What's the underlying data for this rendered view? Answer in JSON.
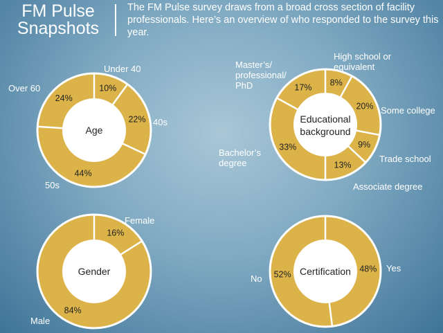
{
  "header": {
    "title_line1": "FM Pulse",
    "title_line2": "Snapshots",
    "intro": "The FM Pulse survey draws from a broad cross section of facility professionals. Here’s an overview of who responded to the survey this year."
  },
  "colors": {
    "slice": "#dbb349",
    "divider": "#ffffff",
    "center": "#ffffff"
  },
  "chart_data": [
    {
      "type": "pie",
      "center_label": [
        "Age"
      ],
      "slices": [
        {
          "label": "Under 40",
          "value": 10,
          "display": "10%"
        },
        {
          "label": "40s",
          "value": 22,
          "display": "22%"
        },
        {
          "label": "50s",
          "value": 44,
          "display": "44%"
        },
        {
          "label": "Over 60",
          "value": 24,
          "display": "24%"
        }
      ]
    },
    {
      "type": "pie",
      "center_label": [
        "Educational",
        "background"
      ],
      "slices": [
        {
          "label": "High school or equivalent",
          "value": 8,
          "display": "8%"
        },
        {
          "label": "Some college",
          "value": 20,
          "display": "20%"
        },
        {
          "label": "Trade school",
          "value": 9,
          "display": "9%"
        },
        {
          "label": "Associate degree",
          "value": 13,
          "display": "13%"
        },
        {
          "label": "Bachelor’s degree",
          "value": 33,
          "display": "33%"
        },
        {
          "label": "Master’s/ professional/ PhD",
          "value": 17,
          "display": "17%"
        }
      ]
    },
    {
      "type": "pie",
      "center_label": [
        "Gender"
      ],
      "slices": [
        {
          "label": "Female",
          "value": 16,
          "display": "16%"
        },
        {
          "label": "Male",
          "value": 84,
          "display": "84%"
        }
      ]
    },
    {
      "type": "pie",
      "center_label": [
        "Certification"
      ],
      "slices": [
        {
          "label": "Yes",
          "value": 48,
          "display": "48%"
        },
        {
          "label": "No",
          "value": 52,
          "display": "52%"
        }
      ]
    }
  ]
}
